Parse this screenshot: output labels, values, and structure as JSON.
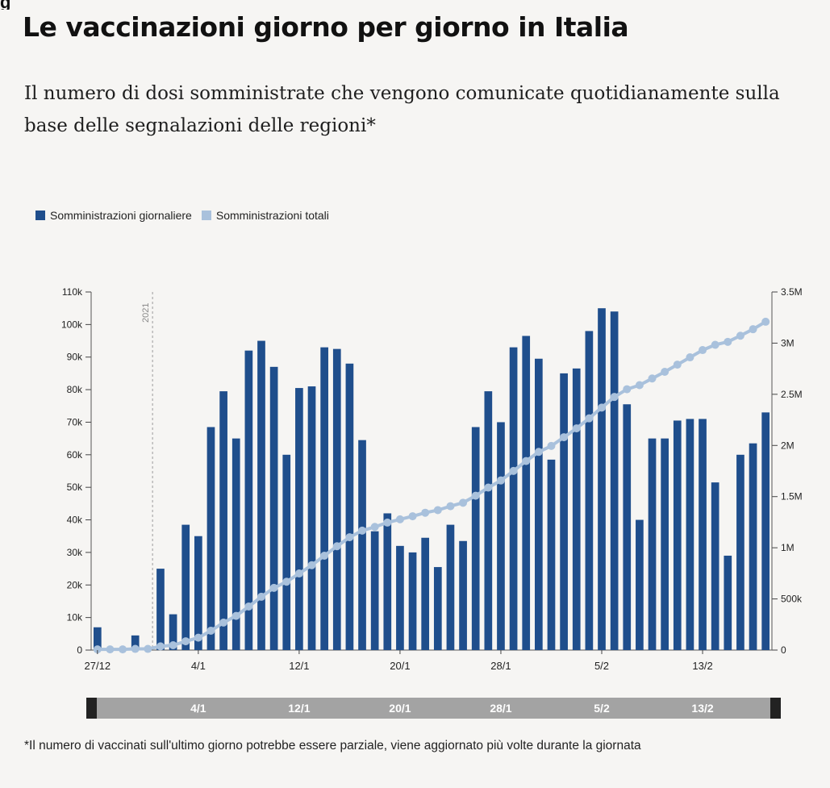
{
  "header": {
    "title": "Le vaccinazioni giorno per giorno in Italia",
    "subtitle": "Il numero di dosi somministrate che vengono comunicate quotidianamente sulla base delle segnalazioni delle regioni*"
  },
  "footnote": "*Il numero di vaccinati sull'ultimo giorno potrebbe essere parziale, viene aggiornato più volte durante la giornata",
  "colors": {
    "bar": "#1f4e8c",
    "line": "#a9c1dc",
    "grid": "#d9d9d9",
    "navigator": "#a3a3a3"
  },
  "chart_data": {
    "type": "bar",
    "title": "Le vaccinazioni giorno per giorno in Italia",
    "start_date": "27/12",
    "x_tick_labels": [
      "27/12",
      "4/1",
      "12/1",
      "20/1",
      "28/1",
      "5/2",
      "13/2"
    ],
    "x_tick_indices": [
      0,
      8,
      16,
      24,
      32,
      40,
      48
    ],
    "annotation": {
      "label": "2021",
      "at_index": 5
    },
    "y_left": {
      "min": 0,
      "max": 110000,
      "ticks": [
        "0",
        "10k",
        "20k",
        "30k",
        "40k",
        "50k",
        "60k",
        "70k",
        "80k",
        "90k",
        "100k",
        "110k"
      ]
    },
    "y_right": {
      "min": 0,
      "max": 3500000,
      "ticks": [
        "0",
        "500k",
        "1M",
        "1.5M",
        "2M",
        "2.5M",
        "3M",
        "3.5M"
      ]
    },
    "navigator_labels": [
      "4/1",
      "12/1",
      "20/1",
      "28/1",
      "5/2",
      "13/2"
    ],
    "series": [
      {
        "name": "Somministrazioni giornaliere",
        "axis": "left",
        "kind": "bar",
        "values": [
          7000,
          0,
          0,
          4500,
          0,
          25000,
          11000,
          38500,
          35000,
          68500,
          79500,
          65000,
          92000,
          95000,
          87000,
          60000,
          80500,
          81000,
          93000,
          92500,
          88000,
          64500,
          36500,
          42000,
          32000,
          30000,
          34500,
          25500,
          38500,
          33500,
          68500,
          79500,
          70000,
          93000,
          96500,
          89500,
          58500,
          85000,
          86500,
          98000,
          105000,
          104000,
          75500,
          40000,
          65000,
          65000,
          70500,
          71000,
          71000,
          51500,
          29000,
          60000,
          63500,
          73000
        ]
      },
      {
        "name": "Somministrazioni totali",
        "axis": "right",
        "kind": "line",
        "values": [
          7000,
          7000,
          7000,
          11500,
          11500,
          36500,
          47500,
          86000,
          121000,
          189500,
          269000,
          334000,
          426000,
          521000,
          608000,
          668000,
          748500,
          829500,
          922500,
          1015000,
          1103000,
          1167500,
          1204000,
          1246000,
          1278000,
          1308000,
          1342500,
          1368000,
          1406500,
          1440000,
          1508500,
          1588000,
          1658000,
          1751000,
          1847500,
          1937000,
          1995500,
          2080500,
          2167000,
          2265000,
          2370000,
          2474000,
          2549500,
          2589500,
          2654500,
          2719500,
          2790000,
          2861000,
          2932000,
          2983500,
          3012500,
          3072500,
          3136000,
          3209000
        ]
      }
    ]
  }
}
